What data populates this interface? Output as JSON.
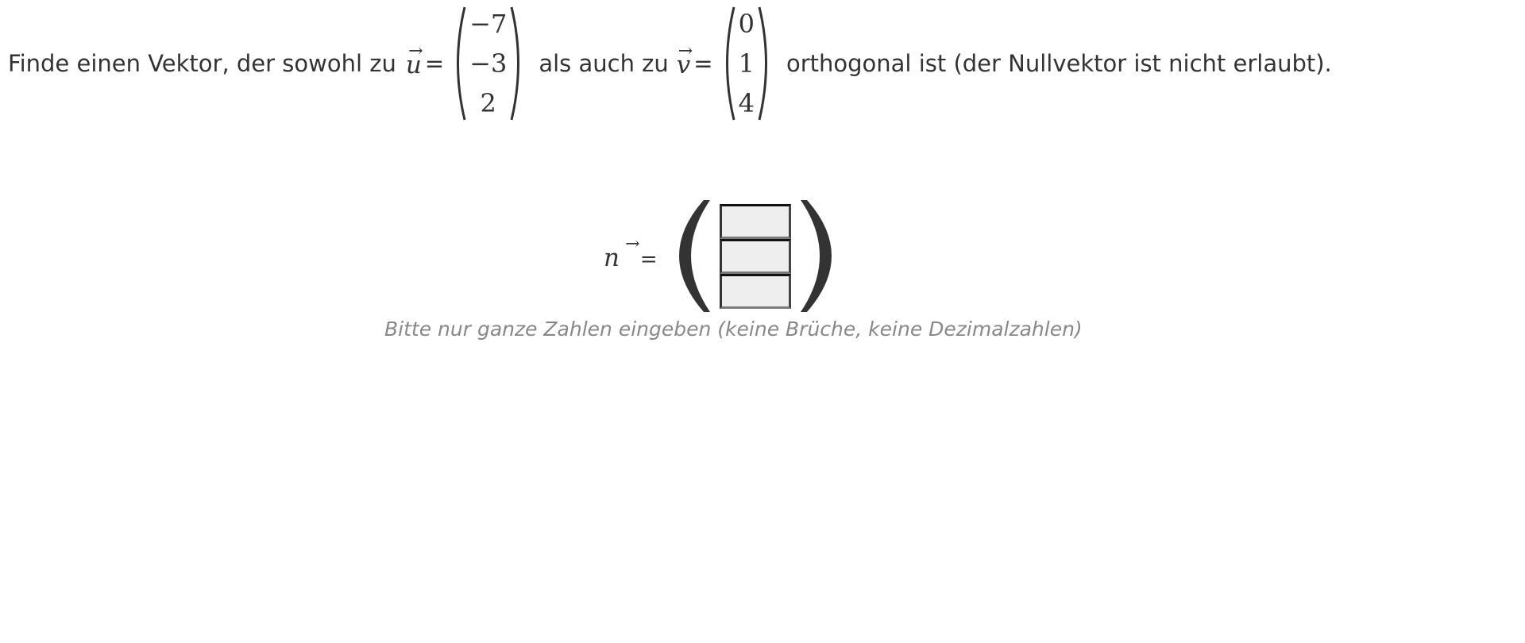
{
  "question": {
    "intro": "Finde einen Vektor, der sowohl zu",
    "middle": "als auch zu",
    "outro": "orthogonal ist (der Nullvektor ist nicht erlaubt).",
    "vector_u": {
      "symbol": "u",
      "arrow": "→",
      "equals": "=",
      "entries": [
        "−7",
        "−3",
        "2"
      ]
    },
    "vector_v": {
      "symbol": "v",
      "arrow": "→",
      "equals": "=",
      "entries": [
        "0",
        "1",
        "4"
      ]
    }
  },
  "answer": {
    "symbol": "n",
    "arrow": "→",
    "equals": "=",
    "inputs": [
      {
        "value": "",
        "placeholder": ""
      },
      {
        "value": "",
        "placeholder": ""
      },
      {
        "value": "",
        "placeholder": ""
      }
    ]
  },
  "hint": "Bitte nur ganze Zahlen eingeben (keine Brüche, keine Dezimalzahlen)"
}
